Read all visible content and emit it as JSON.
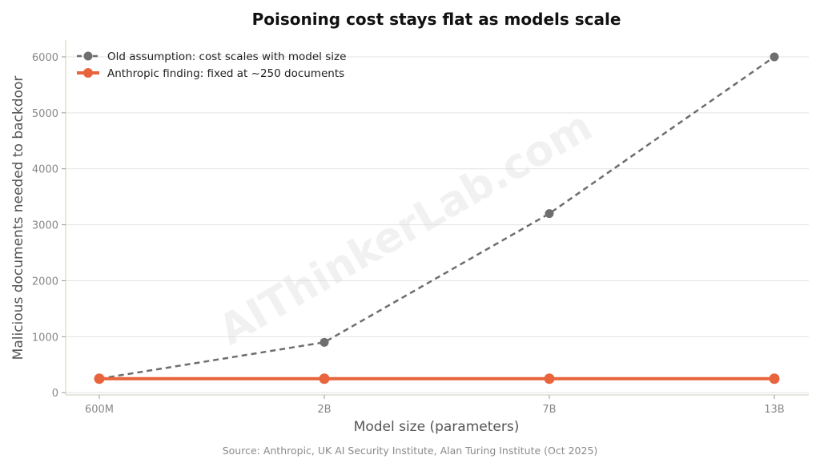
{
  "chart_data": {
    "type": "line",
    "title": "Poisoning cost stays flat as models scale",
    "xlabel": "Model size (parameters)",
    "ylabel": "Malicious documents needed to backdoor",
    "categories": [
      "600M",
      "2B",
      "7B",
      "13B"
    ],
    "yticks": [
      0,
      1000,
      2000,
      3000,
      4000,
      5000,
      6000
    ],
    "ylim": [
      -40,
      6300
    ],
    "grid": "horizontal",
    "legend_position": "top-left",
    "series": [
      {
        "name": "Old assumption: cost scales with model size",
        "values": [
          250,
          900,
          3200,
          6000
        ],
        "color": "#6e6e6e",
        "style": "dashed"
      },
      {
        "name": "Anthropic finding: fixed at ~250 documents",
        "values": [
          250,
          250,
          250,
          250
        ],
        "color": "#e8643c",
        "style": "solid"
      }
    ],
    "source": "Source: Anthropic, UK AI Security Institute, Alan Turing Institute (Oct 2025)",
    "watermark": "AIThinkerLab.com"
  }
}
